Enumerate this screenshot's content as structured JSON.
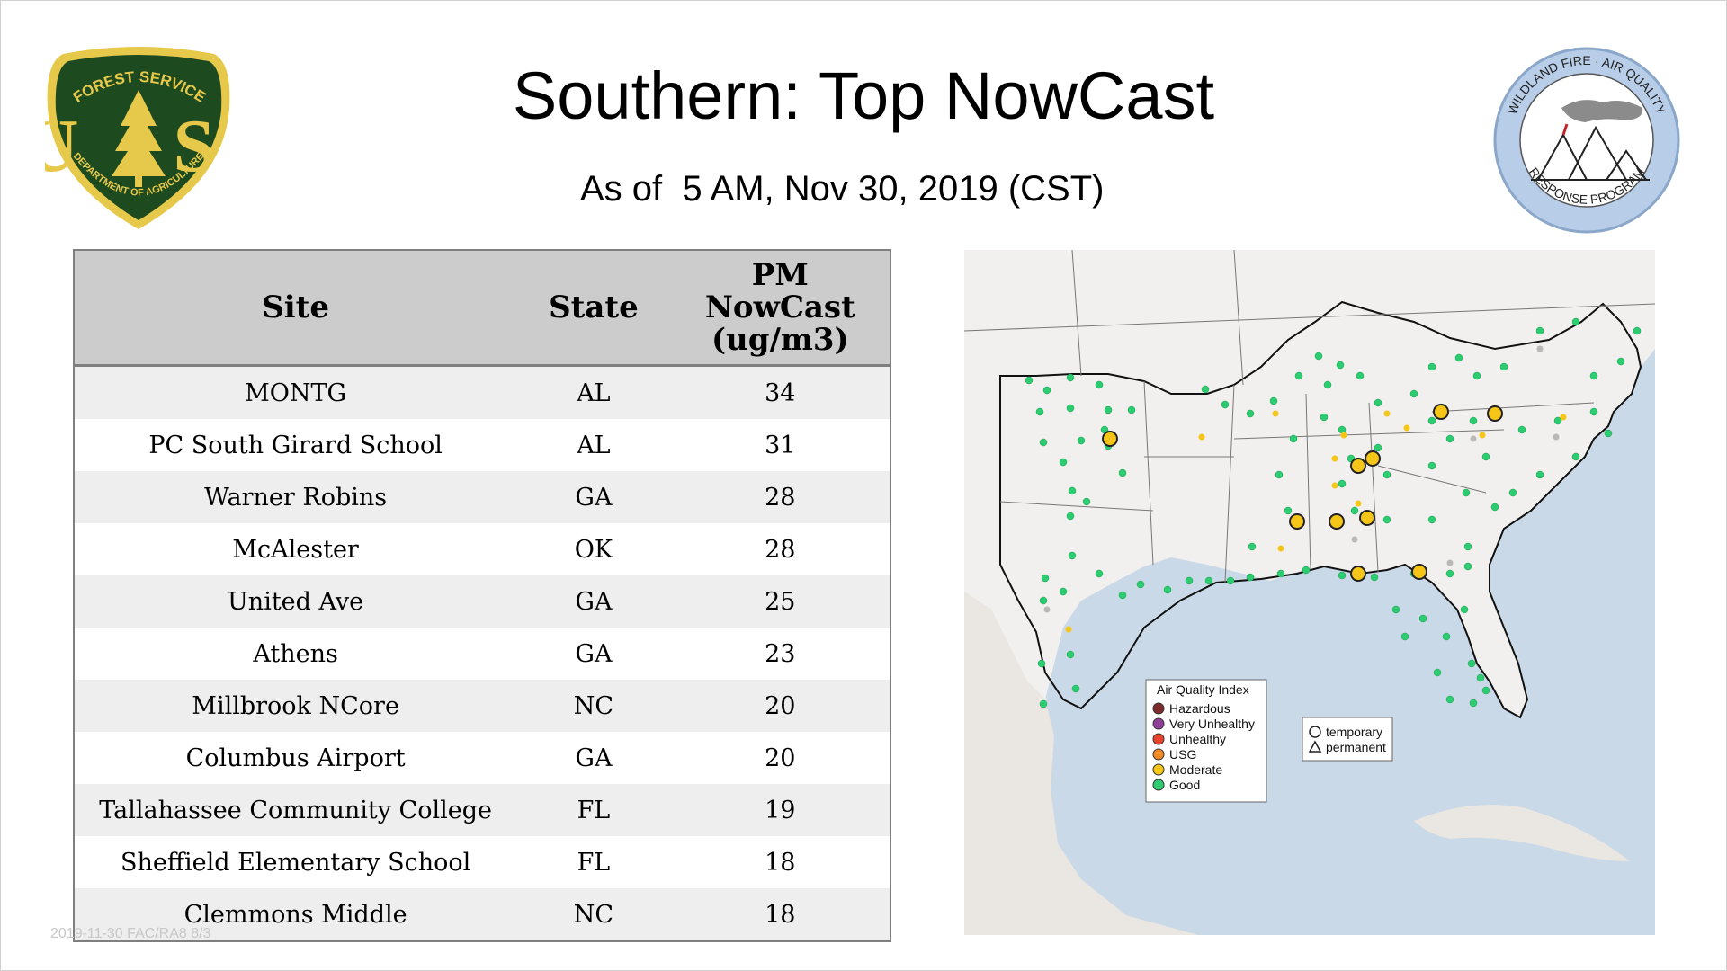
{
  "slide": {
    "title": "Southern: Top NowCast",
    "subtitle": "As of  5 AM, Nov 30, 2019 (CST)",
    "footer_faint": "2019-11-30 FAC/RA8 8/3"
  },
  "logos": {
    "forest_service": {
      "top_text": "FOREST SERVICE",
      "letters": "U S",
      "bottom_text": "DEPARTMENT OF AGRICULTURE",
      "colors": {
        "green": "#1d4a1f",
        "gold": "#e6c84a"
      }
    },
    "wildland_fire": {
      "ring_text_top": "WILDLAND FIRE · AIR QUALITY",
      "ring_text_bottom": "RESPONSE PROGRAM",
      "colors": {
        "ring": "#b7cde8"
      }
    }
  },
  "table": {
    "headers": [
      "Site",
      "State",
      "PM NowCast (ug/m3)"
    ],
    "rows": [
      {
        "site": "MONTG",
        "state": "AL",
        "value": "34"
      },
      {
        "site": "PC South Girard School",
        "state": "AL",
        "value": "31"
      },
      {
        "site": "Warner Robins",
        "state": "GA",
        "value": "28"
      },
      {
        "site": "McAlester",
        "state": "OK",
        "value": "28"
      },
      {
        "site": "United Ave",
        "state": "GA",
        "value": "25"
      },
      {
        "site": "Athens",
        "state": "GA",
        "value": "23"
      },
      {
        "site": "Millbrook NCore",
        "state": "NC",
        "value": "20"
      },
      {
        "site": "Columbus Airport",
        "state": "GA",
        "value": "20"
      },
      {
        "site": "Tallahassee Community College",
        "state": "FL",
        "value": "19"
      },
      {
        "site": "Sheffield Elementary School",
        "state": "FL",
        "value": "18"
      },
      {
        "site": "Clemmons Middle",
        "state": "NC",
        "value": "18"
      }
    ]
  },
  "map": {
    "legend_aqi": {
      "title": "Air Quality Index",
      "items": [
        {
          "label": "Hazardous",
          "color": "#7e2b2b"
        },
        {
          "label": "Very Unhealthy",
          "color": "#8f3f97"
        },
        {
          "label": "Unhealthy",
          "color": "#e8432a"
        },
        {
          "label": "USG",
          "color": "#f18a22"
        },
        {
          "label": "Moderate",
          "color": "#f5c518"
        },
        {
          "label": "Good",
          "color": "#2ecc71"
        }
      ]
    },
    "legend_type": {
      "temporary": "temporary",
      "permanent": "permanent"
    },
    "colors": {
      "ocean": "#c9d9e7",
      "land": "#f2f0ee",
      "good": "#2ecc71",
      "moderate": "#f5c518",
      "gray": "#b8b8b8"
    }
  }
}
